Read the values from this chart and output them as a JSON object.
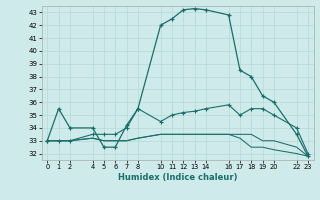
{
  "xlabel": "Humidex (Indice chaleur)",
  "background_color": "#ceeaea",
  "grid_color": "#b8d8d8",
  "line_color": "#1a6e6a",
  "hours": [
    0,
    1,
    2,
    4,
    5,
    6,
    7,
    8,
    10,
    11,
    12,
    13,
    14,
    16,
    17,
    18,
    19,
    20,
    22,
    23
  ],
  "line1": [
    33,
    35.5,
    34,
    34,
    32.5,
    32.5,
    34.2,
    35.5,
    42.0,
    42.5,
    43.2,
    43.3,
    43.2,
    42.8,
    38.5,
    38.0,
    36.5,
    36.0,
    33.5,
    31.8
  ],
  "line2": [
    33,
    33,
    33,
    33.5,
    33.5,
    33.5,
    34.0,
    35.5,
    34.5,
    35.0,
    35.2,
    35.3,
    35.5,
    35.8,
    35.0,
    35.5,
    35.5,
    35.0,
    34.0,
    32.0
  ],
  "line3": [
    33,
    33,
    33,
    33.2,
    33.0,
    33.0,
    33.0,
    33.2,
    33.5,
    33.5,
    33.5,
    33.5,
    33.5,
    33.5,
    33.5,
    33.5,
    33.0,
    33.0,
    32.5,
    31.8
  ],
  "line4": [
    33,
    33,
    33,
    33.2,
    33.0,
    33.0,
    33.0,
    33.2,
    33.5,
    33.5,
    33.5,
    33.5,
    33.5,
    33.5,
    33.2,
    32.5,
    32.5,
    32.3,
    32.0,
    31.8
  ],
  "ylim": [
    31.5,
    43.5
  ],
  "yticks": [
    32,
    33,
    34,
    35,
    36,
    37,
    38,
    39,
    40,
    41,
    42,
    43
  ],
  "xticks": [
    0,
    1,
    2,
    4,
    5,
    6,
    7,
    8,
    10,
    11,
    12,
    13,
    14,
    16,
    17,
    18,
    19,
    20,
    22,
    23
  ]
}
